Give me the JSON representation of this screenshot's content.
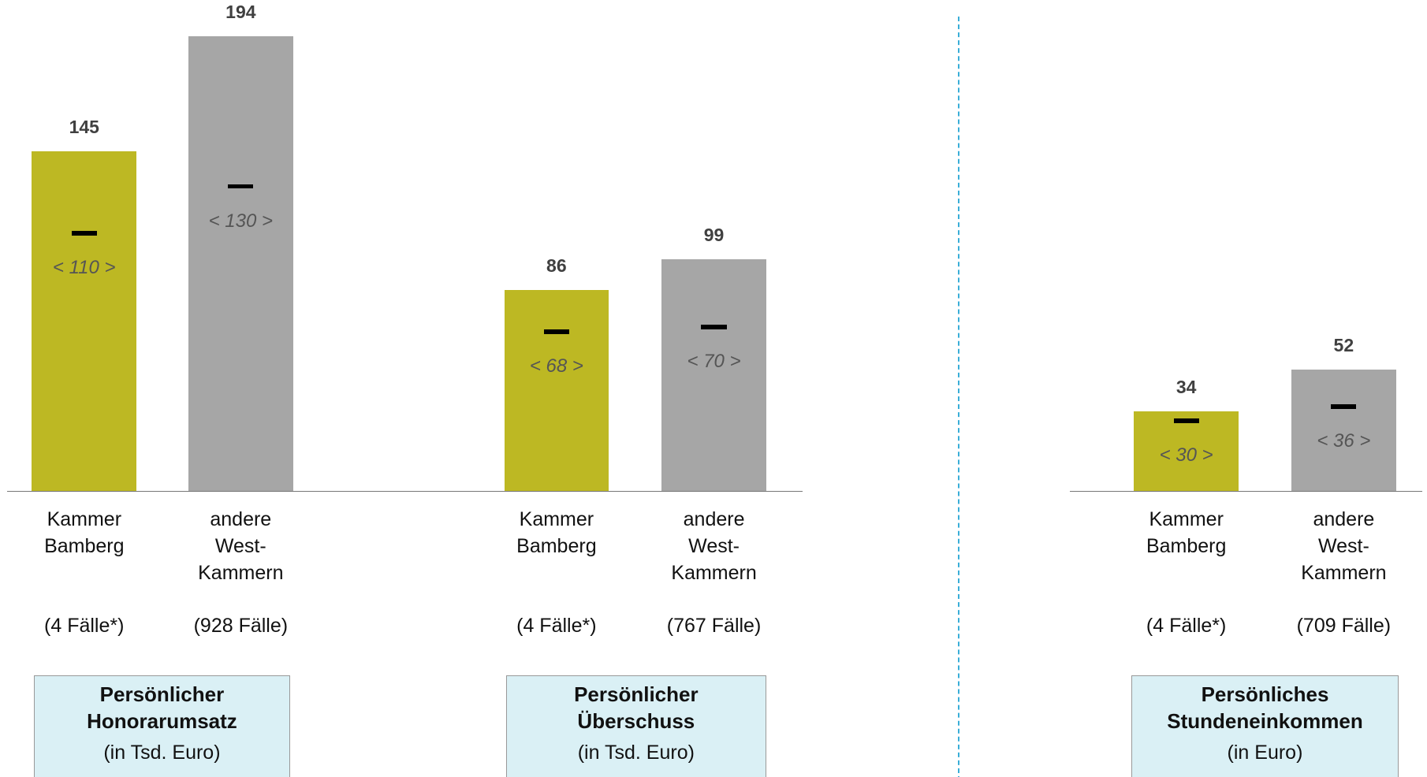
{
  "chart_data": [
    {
      "type": "bar",
      "categories": [
        "Kammer Bamberg",
        "andere West-Kammern"
      ],
      "values": [
        145,
        194
      ],
      "medians": [
        110,
        130
      ],
      "median_labels": [
        "< 110 >",
        "< 130 >"
      ],
      "cases": [
        "(4 Fälle*)",
        "(928 Fälle)"
      ],
      "colors": [
        "#bdb823",
        "#a6a6a6"
      ],
      "ylim": [
        0,
        194
      ],
      "box_title": "Persönlicher Honorarumsatz",
      "box_subtitle": "(in Tsd. Euro)"
    },
    {
      "type": "bar",
      "categories": [
        "Kammer Bamberg",
        "andere West-Kammern"
      ],
      "values": [
        86,
        99
      ],
      "medians": [
        68,
        70
      ],
      "median_labels": [
        "< 68 >",
        "< 70 >"
      ],
      "cases": [
        "(4 Fälle*)",
        "(767 Fälle)"
      ],
      "colors": [
        "#bdb823",
        "#a6a6a6"
      ],
      "ylim": [
        0,
        194
      ],
      "box_title": "Persönlicher Überschuss",
      "box_subtitle": "(in Tsd. Euro)"
    },
    {
      "type": "bar",
      "categories": [
        "Kammer Bamberg",
        "andere West-Kammern"
      ],
      "values": [
        34,
        52
      ],
      "medians": [
        30,
        36
      ],
      "median_labels": [
        "< 30 >",
        "< 36 >"
      ],
      "cases": [
        "(4 Fälle*)",
        "(709 Fälle)"
      ],
      "colors": [
        "#bdb823",
        "#a6a6a6"
      ],
      "ylim": [
        0,
        194
      ],
      "box_title": "Persönliches Stundeneinkommen",
      "box_subtitle": "(in Euro)"
    }
  ]
}
